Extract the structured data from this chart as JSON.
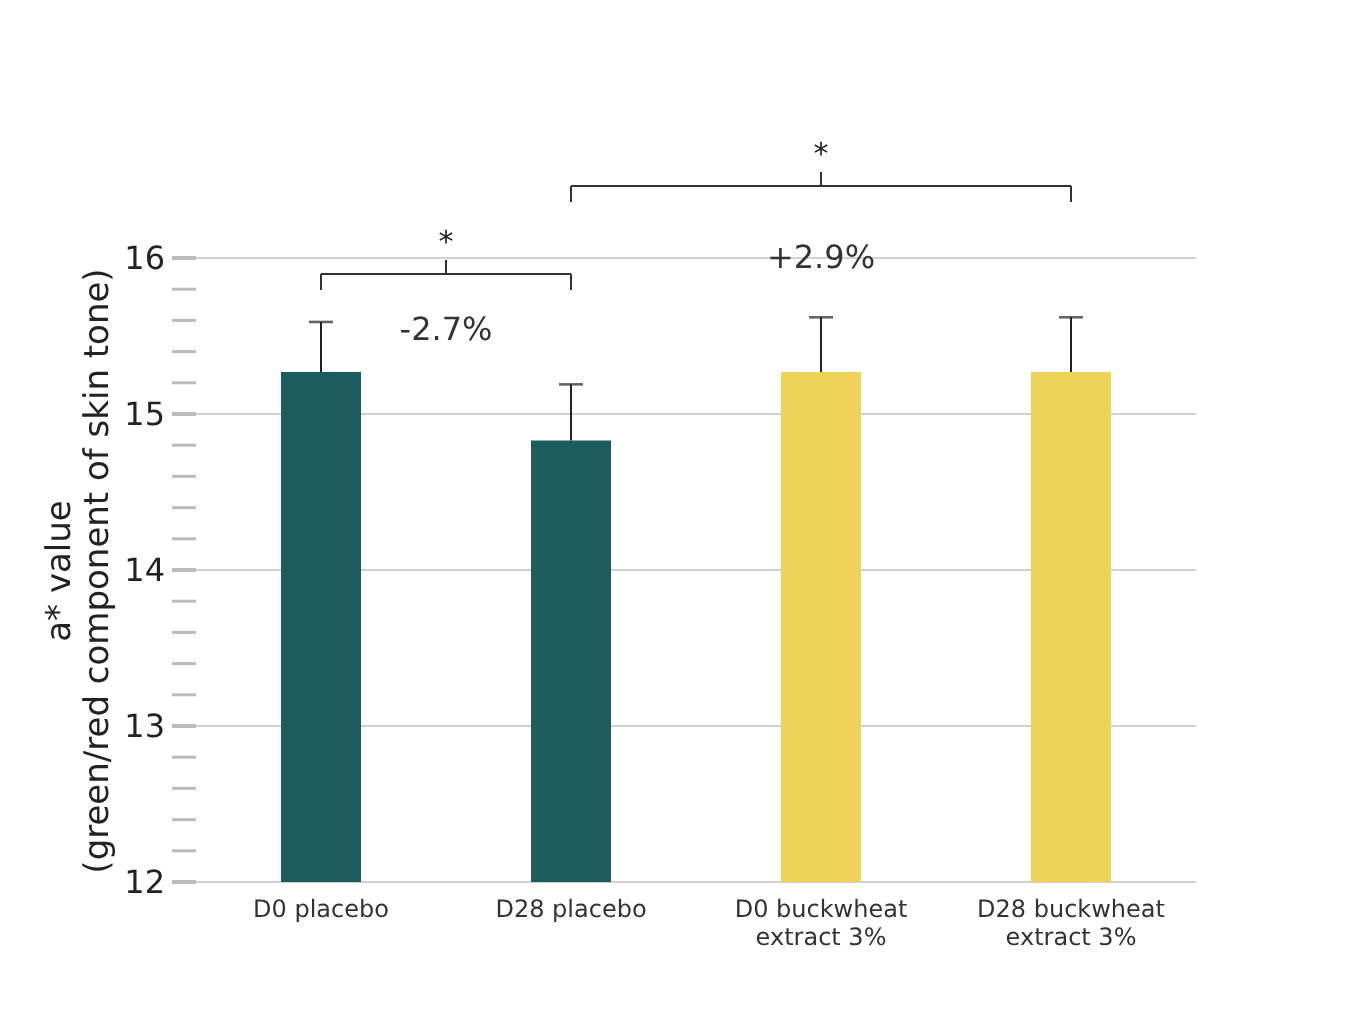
{
  "chart_data": {
    "type": "bar",
    "categories": [
      "D0 placebo",
      "D28 placebo",
      "D0 buckwheat extract 3%",
      "D28 buckwheat extract 3%"
    ],
    "ylabel": "a* value\n(green/red component of skin tone)",
    "series": [
      {
        "colors": [
          "#1d5c5e",
          "#1d5c5e",
          "#edd35a",
          "#edd35a"
        ],
        "values": [
          15.27,
          14.83,
          15.27,
          15.27
        ],
        "errors": [
          [
            15.27,
            15.59
          ],
          [
            14.83,
            15.19
          ],
          [
            15.27,
            15.62
          ],
          [
            15.27,
            15.62
          ]
        ]
      }
    ],
    "ylim": [
      12,
      16
    ],
    "yticks": [
      12,
      {
        "value": 12.2,
        "label": null
      },
      {
        "value": 12.4,
        "label": null
      },
      {
        "value": 12.6,
        "label": null
      },
      {
        "value": 12.8,
        "label": null
      },
      13,
      {
        "value": 13.2,
        "label": null
      },
      {
        "value": 13.4,
        "label": null
      },
      {
        "value": 13.6,
        "label": null
      },
      {
        "value": 13.8,
        "label": null
      },
      14,
      {
        "value": 14.2,
        "label": null
      },
      {
        "value": 14.4,
        "label": null
      },
      {
        "value": 14.6,
        "label": null
      },
      {
        "value": 14.8,
        "label": null
      },
      15,
      {
        "value": 15.2,
        "label": null
      },
      {
        "value": 15.4,
        "label": null
      },
      {
        "value": 15.6,
        "label": null
      },
      {
        "value": 15.8,
        "label": null
      },
      16
    ],
    "grid": "y",
    "annotations": [
      "*",
      "-2.7%",
      "*",
      "+2.9%"
    ]
  }
}
